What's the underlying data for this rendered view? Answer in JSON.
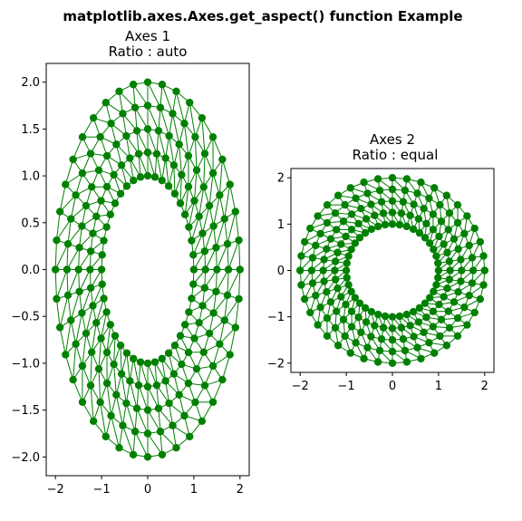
{
  "figure": {
    "suptitle": "matplotlib.axes.Axes.get_aspect() function Example"
  },
  "chart_data": [
    {
      "type": "line",
      "title_line1": "Axes 1",
      "title_line2": "Ratio : auto",
      "xlim": [
        -2.2,
        2.2
      ],
      "ylim": [
        -2.2,
        2.2
      ],
      "xticks": [
        -2,
        -1,
        0,
        1,
        2
      ],
      "xtick_labels": [
        "−2",
        "−1",
        "0",
        "1",
        "2"
      ],
      "yticks": [
        -2.0,
        -1.5,
        -1.0,
        -0.5,
        0.0,
        0.5,
        1.0,
        1.5,
        2.0
      ],
      "ytick_labels": [
        "−2.0",
        "−1.5",
        "−1.0",
        "−0.5",
        "0.0",
        "0.5",
        "1.0",
        "1.5",
        "2.0"
      ],
      "grid": false,
      "series": [
        {
          "color": "#008000",
          "marker": "circle",
          "curve": "annulus",
          "radius_range": [
            1.0,
            2.0
          ],
          "radial_count": 5,
          "angular_count": 40
        }
      ]
    },
    {
      "type": "line",
      "title_line1": "Axes 2",
      "title_line2": "Ratio : equal",
      "xlim": [
        -2.2,
        2.2
      ],
      "ylim": [
        -2.2,
        2.2
      ],
      "xticks": [
        -2,
        -1,
        0,
        1,
        2
      ],
      "xtick_labels": [
        "−2",
        "−1",
        "0",
        "1",
        "2"
      ],
      "yticks": [
        -2,
        -1,
        0,
        1,
        2
      ],
      "ytick_labels": [
        "−2",
        "−1",
        "0",
        "1",
        "2"
      ],
      "grid": false,
      "series": [
        {
          "color": "#008000",
          "marker": "circle",
          "curve": "annulus",
          "radius_range": [
            1.0,
            2.0
          ],
          "radial_count": 5,
          "angular_count": 40
        }
      ]
    }
  ]
}
